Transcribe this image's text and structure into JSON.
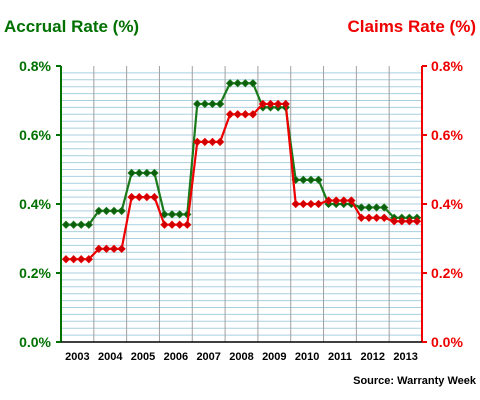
{
  "chart_data": {
    "type": "line",
    "step": true,
    "left_axis_title": "Accrual Rate (%)",
    "right_axis_title": "Claims Rate (%)",
    "source": "Source: Warranty Week",
    "x_labels": [
      "2003",
      "2004",
      "2005",
      "2006",
      "2007",
      "2008",
      "2009",
      "2010",
      "2011",
      "2012",
      "2013"
    ],
    "y_ticks": [
      "0.0%",
      "0.2%",
      "0.4%",
      "0.6%",
      "0.8%"
    ],
    "ylim": [
      0,
      0.8
    ],
    "grid": true,
    "series": [
      {
        "axis": "left",
        "color": "#1a7a1a",
        "marker_color": "#0d5e0d",
        "values": [
          0.34,
          0.34,
          0.34,
          0.34,
          0.38,
          0.38,
          0.38,
          0.38,
          0.49,
          0.49,
          0.49,
          0.49,
          0.37,
          0.37,
          0.37,
          0.37,
          0.69,
          0.69,
          0.69,
          0.69,
          0.75,
          0.75,
          0.75,
          0.75,
          0.68,
          0.68,
          0.68,
          0.68,
          0.47,
          0.47,
          0.47,
          0.47,
          0.4,
          0.4,
          0.4,
          0.4,
          0.39,
          0.39,
          0.39,
          0.39,
          0.36,
          0.36,
          0.36,
          0.36
        ]
      },
      {
        "axis": "right",
        "color": "#ee0000",
        "marker_color": "#cc0000",
        "values": [
          0.24,
          0.24,
          0.24,
          0.24,
          0.27,
          0.27,
          0.27,
          0.27,
          0.42,
          0.42,
          0.42,
          0.42,
          0.34,
          0.34,
          0.34,
          0.34,
          0.58,
          0.58,
          0.58,
          0.58,
          0.66,
          0.66,
          0.66,
          0.66,
          0.69,
          0.69,
          0.69,
          0.69,
          0.4,
          0.4,
          0.4,
          0.4,
          0.41,
          0.41,
          0.41,
          0.41,
          0.36,
          0.36,
          0.36,
          0.36,
          0.35,
          0.35,
          0.35,
          0.35
        ]
      }
    ]
  }
}
